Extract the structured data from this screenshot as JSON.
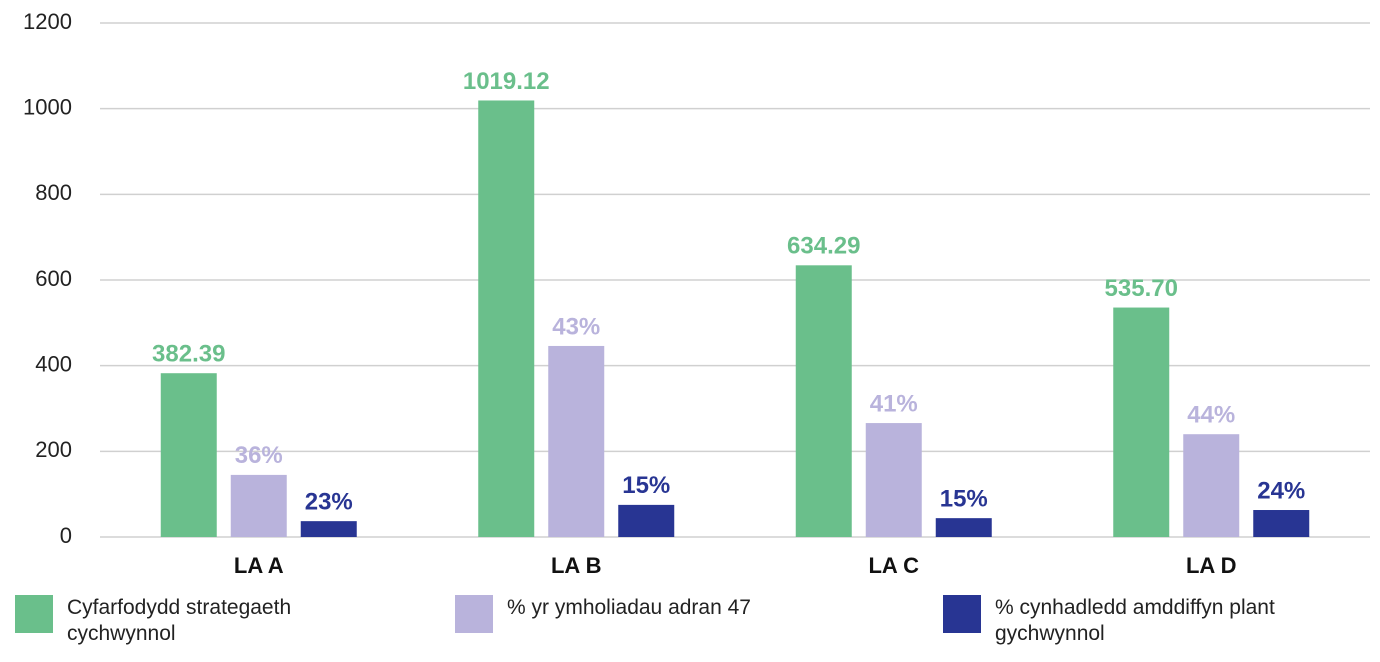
{
  "chart_data": {
    "type": "bar",
    "categories": [
      "LA A",
      "LA B",
      "LA C",
      "LA D"
    ],
    "series": [
      {
        "name": "Cyfarfodydd strategaeth cychwynnol",
        "color": "#6abf8b",
        "values": [
          382.39,
          1019.12,
          634.29,
          535.7
        ],
        "value_labels": [
          "382.39",
          "1019.12",
          "634.29",
          "535.70"
        ]
      },
      {
        "name": "% yr ymholiadau adran 47",
        "color": "#b9b3dc",
        "values": [
          145,
          446,
          266,
          240
        ],
        "labels": [
          "36%",
          "43%",
          "41%",
          "44%"
        ]
      },
      {
        "name": "% cynhadledd amddiffyn plant gychwynnol",
        "color": "#283593",
        "values": [
          37,
          75,
          44,
          63
        ],
        "labels": [
          "23%",
          "15%",
          "15%",
          "24%"
        ]
      }
    ],
    "ylim": [
      0,
      1200
    ],
    "yticks": [
      0,
      200,
      400,
      600,
      800,
      1000,
      1200
    ],
    "grid": true
  }
}
